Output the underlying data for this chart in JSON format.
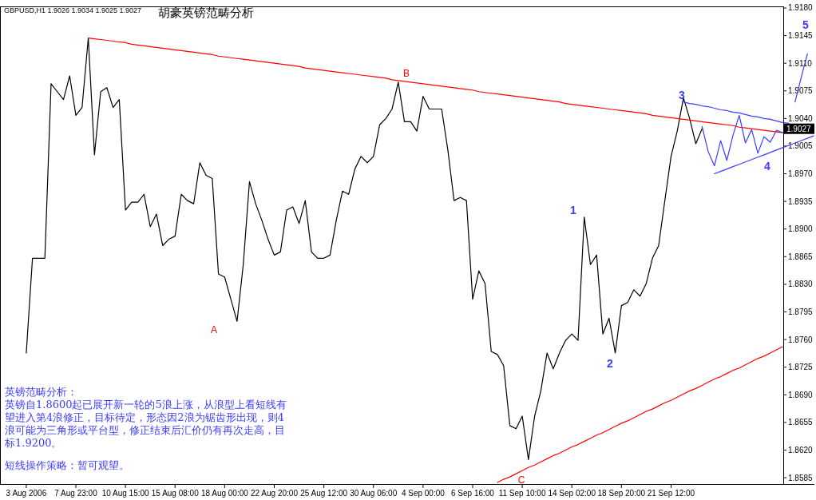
{
  "chart_data": {
    "type": "line",
    "title": "胡豪英镑范畴分析",
    "subtitle": "GBPUSD,H1  1.9026 1.9034 1.9025 1.9027",
    "categories": [
      "3 Aug 2006",
      null,
      null,
      null,
      null,
      null,
      null,
      null,
      "7 Aug 23:00",
      null,
      null,
      null,
      null,
      null,
      null,
      null,
      "10 Aug 15:00",
      null,
      null,
      null,
      null,
      null,
      null,
      null,
      "15 Aug 08:00",
      null,
      null,
      null,
      null,
      null,
      null,
      null,
      "18 Aug 00:00",
      null,
      null,
      null,
      null,
      null,
      null,
      null,
      "22 Aug 20:00",
      null,
      null,
      null,
      null,
      null,
      null,
      null,
      "25 Aug 12:00",
      null,
      null,
      null,
      null,
      null,
      null,
      null,
      "30 Aug 06:00",
      null,
      null,
      null,
      null,
      null,
      null,
      null,
      "4 Sep 00:00",
      null,
      null,
      null,
      null,
      null,
      null,
      null,
      "6 Sep 16:00",
      null,
      null,
      null,
      null,
      null,
      null,
      null,
      "11 Sep 10:00",
      null,
      null,
      null,
      null,
      null,
      null,
      null,
      "14 Sep 02:00",
      null,
      null,
      null,
      null,
      null,
      null,
      null,
      "18 Sep 20:00",
      null,
      null,
      null,
      null,
      null,
      null,
      null,
      "21 Sep 12:00",
      null,
      null,
      null,
      null,
      null,
      null,
      null,
      null,
      null,
      null,
      null,
      null,
      null,
      null,
      null,
      null,
      null,
      null,
      null,
      null,
      null,
      null,
      null
    ],
    "ylim": [
      1.8577,
      1.9182
    ],
    "yticks": [
      {
        "value": 1.8585,
        "label": "1.8585"
      },
      {
        "value": 1.862,
        "label": "1.8620"
      },
      {
        "value": 1.8655,
        "label": "1.8655"
      },
      {
        "value": 1.869,
        "label": "1.8690"
      },
      {
        "value": 1.8725,
        "label": "1.8725"
      },
      {
        "value": 1.876,
        "label": "1.8760"
      },
      {
        "value": 1.8795,
        "label": "1.8795"
      },
      {
        "value": 1.883,
        "label": "1.8830"
      },
      {
        "value": 1.8865,
        "label": "1.8865"
      },
      {
        "value": 1.89,
        "label": "1.8900"
      },
      {
        "value": 1.8935,
        "label": "1.8935"
      },
      {
        "value": 1.897,
        "label": "1.8970"
      },
      {
        "value": 1.9005,
        "label": "1.9005"
      },
      {
        "value": 1.904,
        "label": "1.9040"
      },
      {
        "value": 1.9075,
        "label": "1.9075"
      },
      {
        "value": 1.911,
        "label": "1.9110"
      },
      {
        "value": 1.9145,
        "label": "1.9145"
      },
      {
        "value": 1.918,
        "label": "1.9180"
      }
    ],
    "marker": "none",
    "line_style": "solid",
    "series": [
      {
        "color": "#000000",
        "values": [
          1.8743,
          1.8863,
          1.8863,
          1.8863,
          1.9084,
          1.9074,
          1.9064,
          1.9094,
          1.9044,
          1.9054,
          1.9142,
          1.8994,
          1.9074,
          1.9079,
          1.9054,
          1.9064,
          1.8924,
          1.8934,
          1.8934,
          1.8944,
          1.8903,
          1.8919,
          1.8879,
          1.8887,
          1.8891,
          1.8944,
          1.8936,
          1.8932,
          1.8984,
          1.8968,
          1.8964,
          1.8843,
          1.8839,
          1.8811,
          1.8783,
          1.8855,
          1.896,
          1.8932,
          1.8911,
          1.8887,
          1.8867,
          1.8871,
          1.8924,
          1.8928,
          1.8907,
          1.8936,
          1.8871,
          1.8863,
          1.8863,
          1.8867,
          1.8911,
          1.8948,
          1.8944,
          1.8976,
          1.8992,
          1.8984,
          1.8992,
          1.9032,
          1.904,
          1.9052,
          1.9086,
          1.9036,
          1.9036,
          1.9024,
          1.9068,
          1.9052,
          1.9052,
          1.9052,
          1.9,
          1.8936,
          1.894,
          1.8936,
          1.8811,
          1.8847,
          1.8831,
          1.8745,
          1.8741,
          1.8727,
          1.8651,
          1.8647,
          1.8663,
          1.8608,
          1.8663,
          1.8695,
          1.8743,
          1.8723,
          1.8743,
          1.8759,
          1.8767,
          1.8759,
          1.8915,
          1.8855,
          1.8867,
          1.8767,
          1.8787,
          1.8743,
          1.8803,
          1.8807,
          1.8823,
          1.8815,
          1.8831,
          1.8863,
          1.8879,
          1.8936,
          1.8992,
          1.9024,
          1.9066,
          1.904,
          1.9008,
          1.9027,
          null,
          null,
          null,
          null,
          null,
          null,
          null,
          null,
          null,
          null,
          null,
          null,
          null,
          null,
          null,
          null,
          null,
          null
        ]
      },
      {
        "color": "#ff0000",
        "values": [
          null,
          null,
          null,
          null,
          null,
          null,
          null,
          null,
          null,
          null,
          1.9142,
          1.9141,
          1.914,
          1.9139,
          1.9138,
          1.9137,
          1.9136,
          1.9134,
          1.9133,
          1.9132,
          1.9131,
          1.913,
          1.9129,
          1.9128,
          1.9127,
          1.9126,
          1.9125,
          1.9124,
          1.9123,
          1.9122,
          1.9121,
          1.9119,
          1.9118,
          1.9117,
          1.9116,
          1.9115,
          1.9114,
          1.9113,
          1.9112,
          1.9111,
          1.911,
          1.9109,
          1.9108,
          1.9107,
          1.9106,
          1.9104,
          1.9103,
          1.9102,
          1.9101,
          1.91,
          1.9099,
          1.9098,
          1.9097,
          1.9096,
          1.9095,
          1.9094,
          1.9093,
          1.9092,
          1.9091,
          1.9089,
          1.9088,
          1.9087,
          1.9086,
          1.9085,
          1.9084,
          1.9083,
          1.9082,
          1.9081,
          1.908,
          1.9079,
          1.9078,
          1.9077,
          1.9076,
          1.9074,
          1.9073,
          1.9072,
          1.9071,
          1.907,
          1.9069,
          1.9068,
          1.9067,
          1.9066,
          1.9065,
          1.9064,
          1.9063,
          1.9062,
          1.9061,
          1.9059,
          1.9058,
          1.9057,
          1.9056,
          1.9055,
          1.9054,
          1.9053,
          1.9052,
          1.9051,
          1.905,
          1.9049,
          1.9048,
          1.9047,
          1.9046,
          1.9044,
          1.9043,
          1.9042,
          1.9041,
          1.904,
          1.9039,
          1.9038,
          1.9037,
          1.9036,
          1.9035,
          1.9034,
          1.9033,
          1.9032,
          1.9031,
          1.9029,
          1.9028,
          1.9027,
          1.9026,
          1.9025,
          1.9024,
          1.9023,
          1.9022,
          null,
          null,
          null,
          null,
          null
        ]
      },
      {
        "color": "#ff0000",
        "values": [
          null,
          null,
          null,
          null,
          null,
          null,
          null,
          null,
          null,
          null,
          null,
          null,
          null,
          null,
          null,
          null,
          null,
          null,
          null,
          null,
          null,
          null,
          null,
          null,
          null,
          null,
          null,
          null,
          null,
          null,
          null,
          null,
          null,
          null,
          null,
          null,
          null,
          null,
          null,
          null,
          null,
          null,
          null,
          null,
          null,
          null,
          null,
          null,
          null,
          null,
          null,
          null,
          null,
          null,
          null,
          null,
          null,
          null,
          null,
          null,
          null,
          null,
          null,
          null,
          null,
          null,
          null,
          null,
          null,
          null,
          null,
          null,
          null,
          null,
          null,
          null,
          1.8579,
          1.8583,
          1.8586,
          1.859,
          1.8594,
          1.8598,
          1.8601,
          1.8605,
          1.8609,
          1.8613,
          1.8616,
          1.862,
          1.8624,
          1.8627,
          1.8631,
          1.8635,
          1.8639,
          1.8642,
          1.8646,
          1.865,
          1.8654,
          1.8657,
          1.8661,
          1.8665,
          1.8669,
          1.8672,
          1.8676,
          1.868,
          1.8683,
          1.8687,
          1.8691,
          1.8695,
          1.8698,
          1.8702,
          1.8706,
          1.871,
          1.8713,
          1.8717,
          1.8721,
          1.8724,
          1.8728,
          1.8732,
          1.8736,
          1.8739,
          1.8743,
          1.8747,
          1.8751,
          null,
          null,
          null,
          null,
          null
        ]
      },
      {
        "color": "#3c3cff",
        "values": [
          null,
          null,
          null,
          null,
          null,
          null,
          null,
          null,
          null,
          null,
          null,
          null,
          null,
          null,
          null,
          null,
          null,
          null,
          null,
          null,
          null,
          null,
          null,
          null,
          null,
          null,
          null,
          null,
          null,
          null,
          null,
          null,
          null,
          null,
          null,
          null,
          null,
          null,
          null,
          null,
          null,
          null,
          null,
          null,
          null,
          null,
          null,
          null,
          null,
          null,
          null,
          null,
          null,
          null,
          null,
          null,
          null,
          null,
          null,
          null,
          null,
          null,
          null,
          null,
          null,
          null,
          null,
          null,
          null,
          null,
          null,
          null,
          null,
          null,
          null,
          null,
          null,
          null,
          null,
          null,
          null,
          null,
          null,
          null,
          null,
          null,
          null,
          null,
          null,
          null,
          null,
          null,
          null,
          null,
          null,
          null,
          null,
          null,
          null,
          null,
          null,
          null,
          null,
          null,
          null,
          null,
          1.9061,
          1.9059,
          1.9058,
          1.9056,
          1.9055,
          1.9053,
          1.9051,
          1.905,
          1.9048,
          1.9047,
          1.9045,
          1.9043,
          1.9042,
          1.904,
          1.9039,
          1.9037,
          1.9035,
          1.9034,
          null,
          null,
          null,
          null
        ]
      },
      {
        "color": "#3c3cff",
        "values": [
          null,
          null,
          null,
          null,
          null,
          null,
          null,
          null,
          null,
          null,
          null,
          null,
          null,
          null,
          null,
          null,
          null,
          null,
          null,
          null,
          null,
          null,
          null,
          null,
          null,
          null,
          null,
          null,
          null,
          null,
          null,
          null,
          null,
          null,
          null,
          null,
          null,
          null,
          null,
          null,
          null,
          null,
          null,
          null,
          null,
          null,
          null,
          null,
          null,
          null,
          null,
          null,
          null,
          null,
          null,
          null,
          null,
          null,
          null,
          null,
          null,
          null,
          null,
          null,
          null,
          null,
          null,
          null,
          null,
          null,
          null,
          null,
          null,
          null,
          null,
          null,
          null,
          null,
          null,
          null,
          null,
          null,
          null,
          null,
          null,
          null,
          null,
          null,
          null,
          null,
          null,
          null,
          null,
          null,
          null,
          null,
          null,
          null,
          null,
          null,
          null,
          null,
          null,
          null,
          null,
          null,
          null,
          null,
          null,
          null,
          null,
          1.897,
          1.8973,
          1.8976,
          1.8979,
          1.8982,
          1.8985,
          1.8988,
          1.8991,
          1.8994,
          1.8997,
          1.9,
          1.9003,
          1.9006,
          1.9009,
          1.9012,
          1.9015,
          1.9018
        ]
      },
      {
        "color": "#3c3cff",
        "values": [
          null,
          null,
          null,
          null,
          null,
          null,
          null,
          null,
          null,
          null,
          null,
          null,
          null,
          null,
          null,
          null,
          null,
          null,
          null,
          null,
          null,
          null,
          null,
          null,
          null,
          null,
          null,
          null,
          null,
          null,
          null,
          null,
          null,
          null,
          null,
          null,
          null,
          null,
          null,
          null,
          null,
          null,
          null,
          null,
          null,
          null,
          null,
          null,
          null,
          null,
          null,
          null,
          null,
          null,
          null,
          null,
          null,
          null,
          null,
          null,
          null,
          null,
          null,
          null,
          null,
          null,
          null,
          null,
          null,
          null,
          null,
          null,
          null,
          null,
          null,
          null,
          null,
          null,
          null,
          null,
          null,
          null,
          null,
          null,
          null,
          null,
          null,
          null,
          null,
          null,
          null,
          null,
          null,
          null,
          null,
          null,
          null,
          null,
          null,
          null,
          null,
          null,
          null,
          null,
          null,
          null,
          null,
          null,
          null,
          1.903,
          1.8998,
          1.898,
          1.9012,
          1.8987,
          1.9019,
          1.9044,
          1.9009,
          1.9026,
          1.8996,
          1.9017,
          1.901,
          1.9025,
          1.9022,
          null,
          null,
          null,
          null,
          null
        ]
      },
      {
        "color": "#3c3cff",
        "values": [
          null,
          null,
          null,
          null,
          null,
          null,
          null,
          null,
          null,
          null,
          null,
          null,
          null,
          null,
          null,
          null,
          null,
          null,
          null,
          null,
          null,
          null,
          null,
          null,
          null,
          null,
          null,
          null,
          null,
          null,
          null,
          null,
          null,
          null,
          null,
          null,
          null,
          null,
          null,
          null,
          null,
          null,
          null,
          null,
          null,
          null,
          null,
          null,
          null,
          null,
          null,
          null,
          null,
          null,
          null,
          null,
          null,
          null,
          null,
          null,
          null,
          null,
          null,
          null,
          null,
          null,
          null,
          null,
          null,
          null,
          null,
          null,
          null,
          null,
          null,
          null,
          null,
          null,
          null,
          null,
          null,
          null,
          null,
          null,
          null,
          null,
          null,
          null,
          null,
          null,
          null,
          null,
          null,
          null,
          null,
          null,
          null,
          null,
          null,
          null,
          null,
          null,
          null,
          null,
          null,
          null,
          null,
          null,
          null,
          null,
          null,
          null,
          null,
          null,
          null,
          null,
          null,
          null,
          null,
          null,
          null,
          null,
          null,
          null,
          1.9061,
          1.9092,
          1.9122,
          null
        ]
      }
    ],
    "annotations": [
      "A",
      "B",
      "C",
      "1",
      "2",
      "3",
      "4",
      "5",
      "1.9027",
      "英镑范畴分析：",
      "英镑自1.8600起已展开新一轮的5浪上涨，从浪型上看短线有望进入第4浪修正，目标待定，形态因2浪为锯齿形出现，则4浪可能为三角形或平台型，修正结束后汇价仍有再次走高，目标1.9200。",
      "短线操作策略：暂可观望。"
    ]
  }
}
